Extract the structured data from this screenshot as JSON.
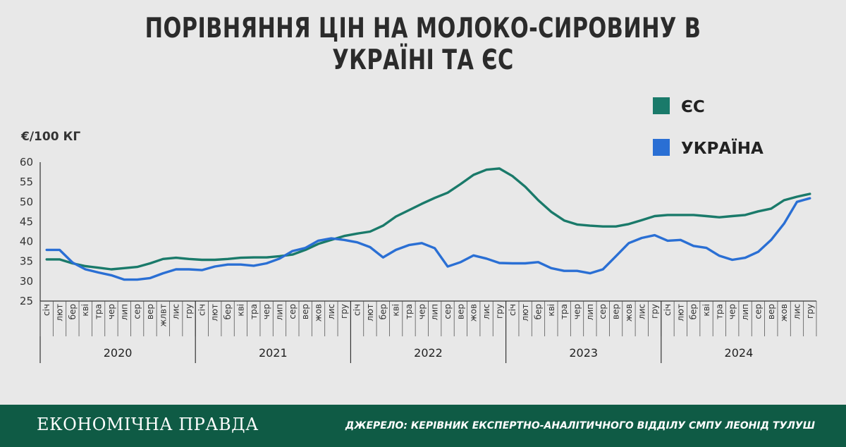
{
  "chart_data": {
    "type": "line",
    "title": "ПОРІВНЯННЯ ЦІН НА МОЛОКО-СИРОВИНУ В УКРАЇНІ ТА ЄС",
    "ylabel": "€/100 КГ",
    "ylim": [
      25,
      60
    ],
    "yticks": [
      25,
      30,
      35,
      40,
      45,
      50,
      55,
      60
    ],
    "grid": false,
    "legend_position": "top-right",
    "years": [
      "2020",
      "2021",
      "2022",
      "2023",
      "2024"
    ],
    "months": [
      "січ",
      "лют",
      "бер",
      "кві",
      "тра",
      "чер",
      "лип",
      "сер",
      "вер",
      "жов",
      "лис",
      "гру"
    ],
    "month_labels_2020_oct": "жлвт",
    "series": [
      {
        "name": "ЄС",
        "color": "#1a7a6a",
        "values": [
          35.5,
          35.5,
          34.5,
          33.8,
          33.4,
          33.0,
          33.3,
          33.6,
          34.5,
          35.6,
          35.9,
          35.6,
          35.4,
          35.4,
          35.6,
          35.9,
          36.0,
          36.0,
          36.3,
          36.7,
          37.9,
          39.4,
          40.4,
          41.4,
          42.0,
          42.5,
          44.0,
          46.3,
          47.9,
          49.5,
          51.0,
          52.3,
          54.5,
          56.8,
          58.1,
          58.4,
          56.5,
          53.8,
          50.4,
          47.5,
          45.3,
          44.3,
          44.0,
          43.8,
          43.8,
          44.4,
          45.4,
          46.4,
          46.7,
          46.7,
          46.7,
          46.4,
          46.1,
          46.4,
          46.7,
          47.6,
          48.3,
          50.4,
          51.3,
          52.0
        ]
      },
      {
        "name": "УКРАЇНА",
        "color": "#2a6fd4",
        "values": [
          37.9,
          37.9,
          34.7,
          33.0,
          32.2,
          31.5,
          30.4,
          30.4,
          30.8,
          32.0,
          33.0,
          33.0,
          32.8,
          33.7,
          34.2,
          34.2,
          33.9,
          34.5,
          35.7,
          37.6,
          38.4,
          40.2,
          40.8,
          40.4,
          39.8,
          38.6,
          36.0,
          37.9,
          39.1,
          39.6,
          38.3,
          33.7,
          34.8,
          36.5,
          35.7,
          34.6,
          34.5,
          34.5,
          34.8,
          33.3,
          32.6,
          32.6,
          32.0,
          33.0,
          36.3,
          39.6,
          40.9,
          41.6,
          40.2,
          40.4,
          38.9,
          38.4,
          36.4,
          35.4,
          35.9,
          37.4,
          40.4,
          44.5,
          50.0,
          50.9
        ]
      }
    ]
  },
  "legend": {
    "eu_label": "ЄС",
    "ua_label": "УКРАЇНА"
  },
  "footer": {
    "brand": "ЕКОНОМІЧНА ПРАВДА",
    "source": "ДЖЕРЕЛО:  КЕРІВНИК ЕКСПЕРТНО-АНАЛІТИЧНОГО ВІДДІЛУ СМПУ ЛЕОНІД ТУЛУШ"
  }
}
